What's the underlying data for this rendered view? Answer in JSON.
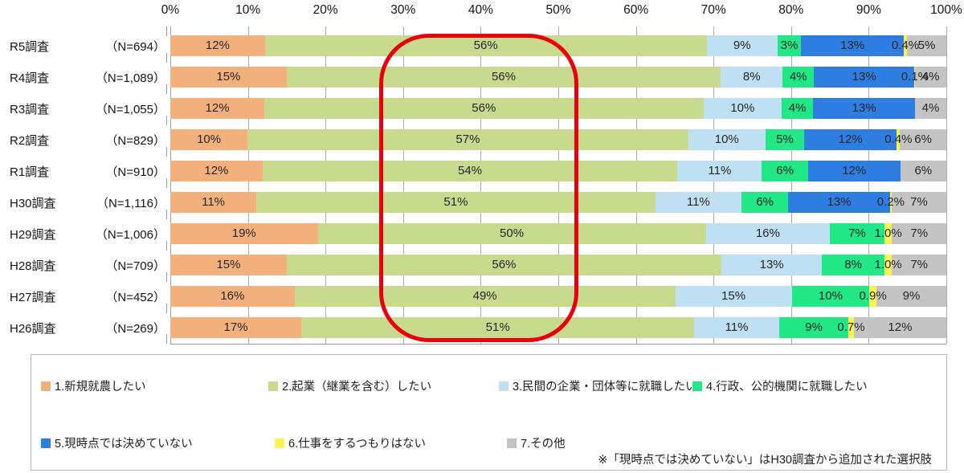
{
  "axis": {
    "ticks": [
      "0%",
      "10%",
      "20%",
      "30%",
      "40%",
      "50%",
      "60%",
      "70%",
      "80%",
      "90%",
      "100%"
    ]
  },
  "series_keys": [
    "shinki-shuno",
    "kigyo",
    "minkan-shushoku",
    "gyosei-shushoku",
    "mikettei",
    "shigoto-shinai",
    "sonota"
  ],
  "series_colors": [
    "#F2B07D",
    "#C7DA8E",
    "#BFDFF2",
    "#22E786",
    "#2E7DE0",
    "#FBF254",
    "#C4C4C4"
  ],
  "rows": [
    {
      "name": "R5調査",
      "n": "（N=694）",
      "segments": [
        {
          "v": 12,
          "t": "12%"
        },
        {
          "v": 56,
          "t": "56%"
        },
        {
          "v": 9,
          "t": "9%"
        },
        {
          "v": 3,
          "t": "3%"
        },
        {
          "v": 13,
          "t": "13%"
        },
        {
          "v": 0.4,
          "t": "0.4%"
        },
        {
          "v": 5,
          "t": "5%"
        }
      ]
    },
    {
      "name": "R4調査",
      "n": "（N=1,089）",
      "segments": [
        {
          "v": 15,
          "t": "15%"
        },
        {
          "v": 56,
          "t": "56%"
        },
        {
          "v": 8,
          "t": "8%"
        },
        {
          "v": 4,
          "t": "4%"
        },
        {
          "v": 13,
          "t": "13%"
        },
        {
          "v": 0.1,
          "t": "0.1%"
        },
        {
          "v": 4,
          "t": "4%"
        }
      ]
    },
    {
      "name": "R3調査",
      "n": "（N=1,055）",
      "segments": [
        {
          "v": 12,
          "t": "12%"
        },
        {
          "v": 56,
          "t": "56%"
        },
        {
          "v": 10,
          "t": "10%"
        },
        {
          "v": 4,
          "t": "4%"
        },
        {
          "v": 13,
          "t": "13%"
        },
        {
          "v": 0,
          "t": ""
        },
        {
          "v": 4,
          "t": "4%"
        }
      ]
    },
    {
      "name": "R2調査",
      "n": "（N=829）",
      "segments": [
        {
          "v": 10,
          "t": "10%"
        },
        {
          "v": 57,
          "t": "57%"
        },
        {
          "v": 10,
          "t": "10%"
        },
        {
          "v": 5,
          "t": "5%"
        },
        {
          "v": 12,
          "t": "12%"
        },
        {
          "v": 0.4,
          "t": "0.4%"
        },
        {
          "v": 6,
          "t": "6%"
        }
      ]
    },
    {
      "name": "R1調査",
      "n": "（N=910）",
      "segments": [
        {
          "v": 12,
          "t": "12%"
        },
        {
          "v": 54,
          "t": "54%"
        },
        {
          "v": 11,
          "t": "11%"
        },
        {
          "v": 6,
          "t": "6%"
        },
        {
          "v": 12,
          "t": "12%"
        },
        {
          "v": 0,
          "t": ""
        },
        {
          "v": 6,
          "t": "6%"
        }
      ]
    },
    {
      "name": "H30調査",
      "n": "（N=1,116）",
      "segments": [
        {
          "v": 11,
          "t": "11%"
        },
        {
          "v": 51,
          "t": "51%"
        },
        {
          "v": 11,
          "t": "11%"
        },
        {
          "v": 6,
          "t": "6%"
        },
        {
          "v": 13,
          "t": "13%"
        },
        {
          "v": 0.2,
          "t": "0.2%"
        },
        {
          "v": 7,
          "t": "7%"
        }
      ]
    },
    {
      "name": "H29調査",
      "n": "（N=1,006）",
      "segments": [
        {
          "v": 19,
          "t": "19%"
        },
        {
          "v": 50,
          "t": "50%"
        },
        {
          "v": 16,
          "t": "16%"
        },
        {
          "v": 7,
          "t": "7%"
        },
        {
          "v": 0,
          "t": ""
        },
        {
          "v": 1.0,
          "t": "1.0%"
        },
        {
          "v": 7,
          "t": "7%"
        }
      ]
    },
    {
      "name": "H28調査",
      "n": "（N=709）",
      "segments": [
        {
          "v": 15,
          "t": "15%"
        },
        {
          "v": 56,
          "t": "56%"
        },
        {
          "v": 13,
          "t": "13%"
        },
        {
          "v": 8,
          "t": "8%"
        },
        {
          "v": 0,
          "t": ""
        },
        {
          "v": 1.0,
          "t": "1.0%"
        },
        {
          "v": 7,
          "t": "7%"
        }
      ]
    },
    {
      "name": "H27調査",
      "n": "（N=452）",
      "segments": [
        {
          "v": 16,
          "t": "16%"
        },
        {
          "v": 49,
          "t": "49%"
        },
        {
          "v": 15,
          "t": "15%"
        },
        {
          "v": 10,
          "t": "10%"
        },
        {
          "v": 0,
          "t": ""
        },
        {
          "v": 0.9,
          "t": "0.9%"
        },
        {
          "v": 9,
          "t": "9%"
        }
      ]
    },
    {
      "name": "H26調査",
      "n": "（N=269）",
      "segments": [
        {
          "v": 17,
          "t": "17%"
        },
        {
          "v": 51,
          "t": "51%"
        },
        {
          "v": 11,
          "t": "11%"
        },
        {
          "v": 9,
          "t": "9%"
        },
        {
          "v": 0,
          "t": ""
        },
        {
          "v": 0.7,
          "t": "0.7%"
        },
        {
          "v": 12,
          "t": "12%"
        }
      ]
    }
  ],
  "legend": {
    "row1": [
      {
        "label": "1.新規就農したい",
        "color": "#F2B07D"
      },
      {
        "label": "2.起業（継業を含む）したい",
        "color": "#C7DA8E"
      },
      {
        "label": "3.民間の企業・団体等に就職したい",
        "color": "#BFDFF2"
      },
      {
        "label": "4.行政、公的機関に就職したい",
        "color": "#22E786"
      }
    ],
    "row2": [
      {
        "label": "5.現時点では決めていない",
        "color": "#2E7DE0"
      },
      {
        "label": "6.仕事をするつもりはない",
        "color": "#FBF254"
      },
      {
        "label": "7.その他",
        "color": "#C4C4C4"
      }
    ]
  },
  "note": "※「現時点では決めていない」はH30調査から追加された選択肢",
  "highlight_color": "#E8000D",
  "chart_data": {
    "type": "bar",
    "orientation": "horizontal-stacked",
    "title": "",
    "xlabel": "",
    "ylabel": "",
    "xlim": [
      0,
      100
    ],
    "x_ticks": [
      "0%",
      "10%",
      "20%",
      "30%",
      "40%",
      "50%",
      "60%",
      "70%",
      "80%",
      "90%",
      "100%"
    ],
    "grid": true,
    "legend_position": "bottom",
    "categories": [
      "R5調査（N=694）",
      "R4調査（N=1,089）",
      "R3調査（N=1,055）",
      "R2調査（N=829）",
      "R1調査（N=910）",
      "H30調査（N=1,116）",
      "H29調査（N=1,006）",
      "H28調査（N=709）",
      "H27調査（N=452）",
      "H26調査（N=269）"
    ],
    "series": [
      {
        "name": "1.新規就農したい",
        "color": "#F2B07D",
        "values": [
          12,
          15,
          12,
          10,
          12,
          11,
          19,
          15,
          16,
          17
        ]
      },
      {
        "name": "2.起業（継業を含む）したい",
        "color": "#C7DA8E",
        "values": [
          56,
          56,
          56,
          57,
          54,
          51,
          50,
          56,
          49,
          51
        ]
      },
      {
        "name": "3.民間の企業・団体等に就職したい",
        "color": "#BFDFF2",
        "values": [
          9,
          8,
          10,
          10,
          11,
          11,
          16,
          13,
          15,
          11
        ]
      },
      {
        "name": "4.行政、公的機関に就職したい",
        "color": "#22E786",
        "values": [
          3,
          4,
          4,
          5,
          6,
          6,
          7,
          8,
          10,
          9
        ]
      },
      {
        "name": "5.現時点では決めていない",
        "color": "#2E7DE0",
        "values": [
          13,
          13,
          13,
          12,
          12,
          13,
          0,
          0,
          0,
          0
        ]
      },
      {
        "name": "6.仕事をするつもりはない",
        "color": "#FBF254",
        "values": [
          0.4,
          0.1,
          0,
          0.4,
          0,
          0.2,
          1.0,
          1.0,
          0.9,
          0.7
        ]
      },
      {
        "name": "7.その他",
        "color": "#C4C4C4",
        "values": [
          5,
          4,
          4,
          6,
          6,
          7,
          7,
          7,
          9,
          12
        ]
      }
    ],
    "annotations": [
      {
        "type": "rounded-rect-outline",
        "color": "#E8000D",
        "x_range_pct": [
          27,
          53
        ],
        "covers": "2.起業（継業を含む）したい data labels, all rows"
      }
    ],
    "footnote": "※「現時点では決めていない」はH30調査から追加された選択肢"
  }
}
